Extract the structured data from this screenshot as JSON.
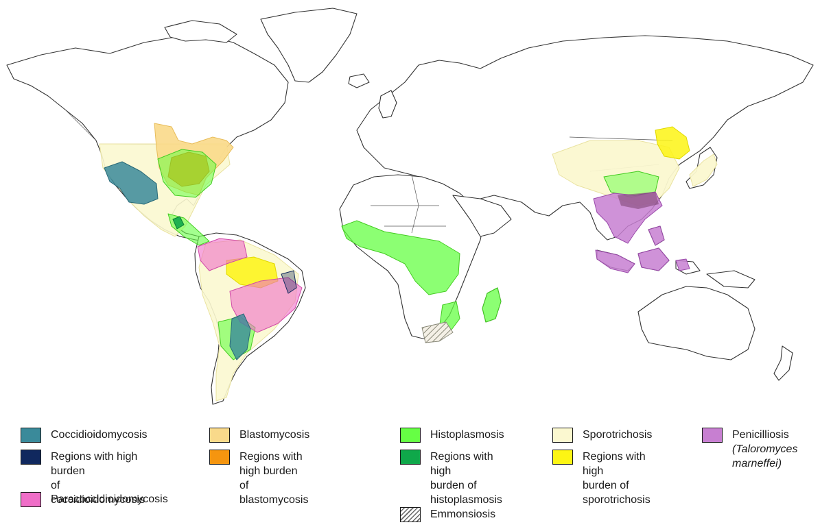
{
  "legend": {
    "coccidioidomycosis": {
      "label": "Coccidioidomycosis",
      "color": "#3a8a9a"
    },
    "coccidioidomycosis_high": {
      "label_line1": "Regions with high burden",
      "label_line2": "of coccidioidomycosis",
      "color": "#10285e"
    },
    "paracoccidioidomycosis": {
      "label": "Paracoccidioidomycosis",
      "color": "#f06ec8"
    },
    "blastomycosis": {
      "label": "Blastomycosis",
      "color": "#f9d98a"
    },
    "blastomycosis_high": {
      "label_line1": "Regions with high burden",
      "label_line2": "of blastomycosis",
      "color": "#f5950f"
    },
    "histoplasmosis": {
      "label": "Histoplasmosis",
      "color": "#66ff44"
    },
    "histoplasmosis_high": {
      "label_line1": "Regions with high",
      "label_line2": "burden of",
      "label_line3": "histoplasmosis",
      "color": "#0fa84a"
    },
    "emmonsiosis": {
      "label": "Emmonsiosis",
      "pattern": "hatched"
    },
    "sporotrichosis": {
      "label": "Sporotrichosis",
      "color": "#fbf8d0"
    },
    "sporotrichosis_high": {
      "label_line1": "Regions with high",
      "label_line2": "burden of",
      "label_line3": "sporotrichosis",
      "color": "#fdf514"
    },
    "penicilliosis": {
      "label_line1": "Penicilliosis",
      "label_line2": "(Taloromyces",
      "label_line3": "marneffei)",
      "color": "#c77fd1"
    }
  }
}
